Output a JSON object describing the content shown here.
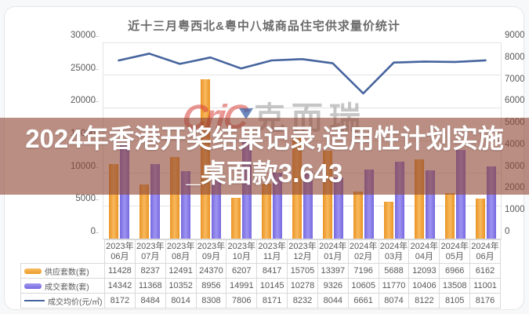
{
  "title": "近十三月粤西北&粤中八城商品住宅供求量价统计",
  "watermark": {
    "logo": "CriC",
    "name": "克而瑞"
  },
  "banner": {
    "line1": "2024年香港开奖结果记录,适用性计划实施",
    "line2": "_桌面款3.643"
  },
  "colors": {
    "supply": "#F0A43C",
    "deal": "#867BE6",
    "price": "#46649E",
    "banner_bg": "rgba(144,73,55,0.62)",
    "watermark_red": "#D8413C",
    "watermark_gray": "#8F8F8F"
  },
  "chart_data": {
    "type": "bar+line",
    "title": "近十三月粤西北&粤中八城商品住宅供求量价统计",
    "categories": [
      "2023年06月",
      "2023年07月",
      "2023年08月",
      "2023年09月",
      "2023年10月",
      "2023年11月",
      "2023年12月",
      "2024年01月",
      "2024年02月",
      "2024年03月",
      "2024年04月",
      "2024年05月",
      "2024年06月"
    ],
    "series": [
      {
        "name": "供应套数(套)",
        "type": "bar",
        "axis": "left",
        "values": [
          11428,
          8237,
          12491,
          24370,
          6207,
          8417,
          15705,
          13397,
          7196,
          5688,
          12093,
          6966,
          6162
        ]
      },
      {
        "name": "成交套数(套)",
        "type": "bar",
        "axis": "left",
        "values": [
          14342,
          11368,
          10352,
          8956,
          14991,
          10145,
          10278,
          9326,
          10605,
          11770,
          10406,
          13508,
          11001
        ]
      },
      {
        "name": "成交均价(元/㎡)",
        "type": "line",
        "axis": "right",
        "values": [
          8172,
          8484,
          8014,
          8308,
          7806,
          8171,
          8232,
          8044,
          6661,
          8074,
          8122,
          8105,
          8176
        ]
      }
    ],
    "left_axis": {
      "min": 0,
      "max": 30000,
      "step": 5000,
      "applies_to": "bar series"
    },
    "right_axis": {
      "min": 0,
      "max": 9000,
      "step": 1000,
      "applies_to": "line series"
    },
    "grid": true,
    "legend_position": "bottom table with row legends"
  }
}
